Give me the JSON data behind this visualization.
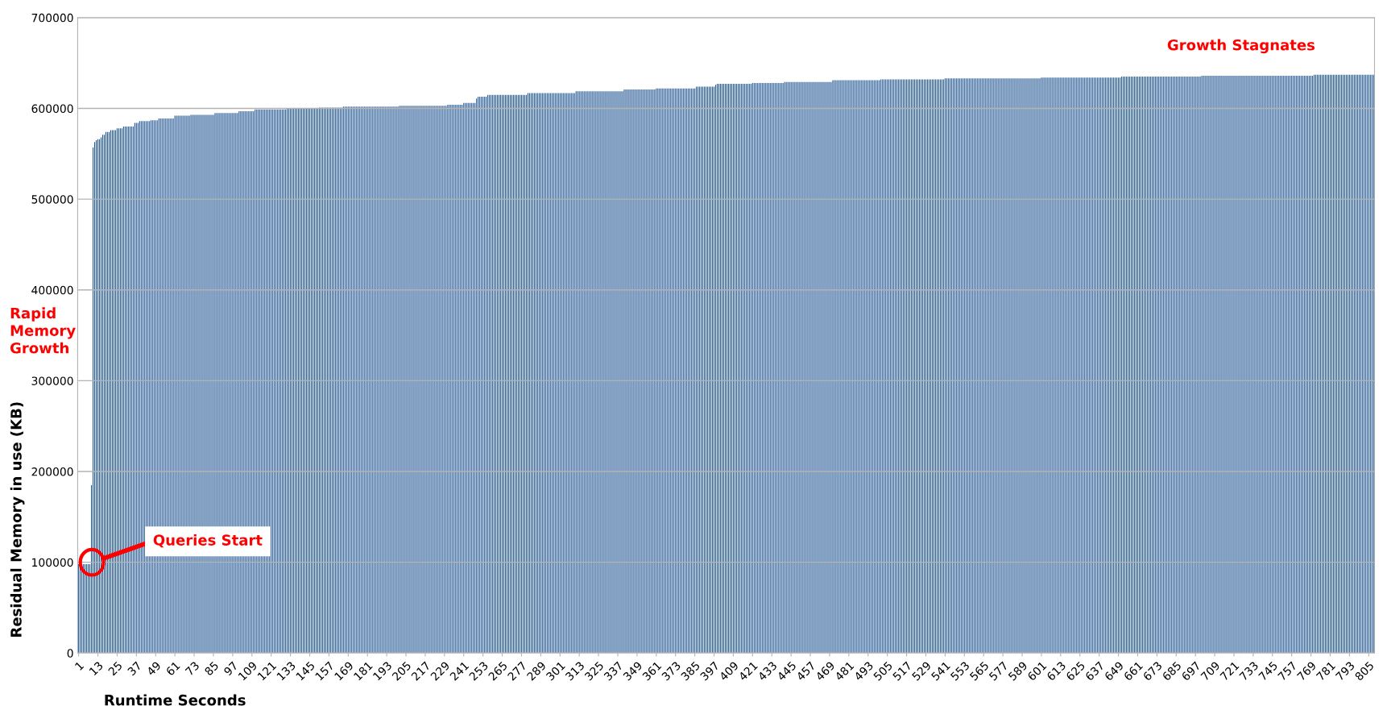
{
  "chart_data": {
    "type": "bar",
    "xlabel": "Runtime Seconds",
    "ylabel": "Residual Memory in use (KB)",
    "annotations": [
      {
        "text": "Queries Start",
        "y": 100000
      },
      "Rapid\nMemory\nGrowth",
      "Growth Stagnates"
    ],
    "ylim": [
      0,
      700000
    ],
    "yticks": [
      0,
      100000,
      200000,
      300000,
      400000,
      500000,
      600000,
      700000
    ],
    "grid": "y",
    "categories": [
      "1",
      null,
      null,
      null,
      null,
      null,
      null,
      null,
      null,
      null,
      null,
      null,
      "13",
      null,
      null,
      null,
      null,
      null,
      null,
      null,
      null,
      null,
      null,
      null,
      "25",
      null,
      null,
      null,
      null,
      null,
      null,
      null,
      null,
      null,
      null,
      null,
      "37",
      null,
      null,
      null,
      null,
      null,
      null,
      null,
      null,
      null,
      null,
      null,
      "49",
      null,
      null,
      null,
      null,
      null,
      null,
      null,
      null,
      null,
      null,
      null,
      "61",
      null,
      null,
      null,
      null,
      null,
      null,
      null,
      null,
      null,
      null,
      null,
      "73",
      null,
      null,
      null,
      null,
      null,
      null,
      null,
      null,
      null,
      null,
      null,
      "85",
      null,
      null,
      null,
      null,
      null,
      null,
      null,
      null,
      null,
      null,
      null,
      "97",
      null,
      null,
      null,
      null,
      null,
      null,
      null,
      null,
      null,
      null,
      null,
      "109",
      null,
      null,
      null,
      null,
      null,
      null,
      null,
      null,
      null,
      null,
      null,
      "121",
      null,
      null,
      null,
      null,
      null,
      null,
      null,
      null,
      null,
      null,
      null,
      "133",
      null,
      null,
      null,
      null,
      null,
      null,
      null,
      null,
      null,
      null,
      null,
      "145",
      null,
      null,
      null,
      null,
      null,
      null,
      null,
      null,
      null,
      null,
      null,
      "157",
      null,
      null,
      null,
      null,
      null,
      null,
      null,
      null,
      null,
      null,
      null,
      "169",
      null,
      null,
      null,
      null,
      null,
      null,
      null,
      null,
      null,
      null,
      null,
      "181",
      null,
      null,
      null,
      null,
      null,
      null,
      null,
      null,
      null,
      null,
      null,
      "193",
      null,
      null,
      null,
      null,
      null,
      null,
      null,
      null,
      null,
      null,
      null,
      "205",
      null,
      null,
      null,
      null,
      null,
      null,
      null,
      null,
      null,
      null,
      null,
      "217",
      null,
      null,
      null,
      null,
      null,
      null,
      null,
      null,
      null,
      null,
      null,
      "229",
      null,
      null,
      null,
      null,
      null,
      null,
      null,
      null,
      null,
      null,
      null,
      "241",
      null,
      null,
      null,
      null,
      null,
      null,
      null,
      null,
      null,
      null,
      null,
      "253",
      null,
      null,
      null,
      null,
      null,
      null,
      null,
      null,
      null,
      null,
      null,
      "265",
      null,
      null,
      null,
      null,
      null,
      null,
      null,
      null,
      null,
      null,
      null,
      "277",
      null,
      null,
      null,
      null,
      null,
      null,
      null,
      null,
      null,
      null,
      null,
      "289",
      null,
      null,
      null,
      null,
      null,
      null,
      null,
      null,
      null,
      null,
      null,
      "301",
      null,
      null,
      null,
      null,
      null,
      null,
      null,
      null,
      null,
      null,
      null,
      "313",
      null,
      null,
      null,
      null,
      null,
      null,
      null,
      null,
      null,
      null,
      null,
      "325",
      null,
      null,
      null,
      null,
      null,
      null,
      null,
      null,
      null,
      null,
      null,
      "337",
      null,
      null,
      null,
      null,
      null,
      null,
      null,
      null,
      null,
      null,
      null,
      "349",
      null,
      null,
      null,
      null,
      null,
      null,
      null,
      null,
      null,
      null,
      null,
      "361",
      null,
      null,
      null,
      null,
      null,
      null,
      null,
      null,
      null,
      null,
      null,
      "373",
      null,
      null,
      null,
      null,
      null,
      null,
      null,
      null,
      null,
      null,
      null,
      "385",
      null,
      null,
      null,
      null,
      null,
      null,
      null,
      null,
      null,
      null,
      null,
      "397",
      null,
      null,
      null,
      null,
      null,
      null,
      null,
      null,
      null,
      null,
      null,
      "409",
      null,
      null,
      null,
      null,
      null,
      null,
      null,
      null,
      null,
      null,
      null,
      "421",
      null,
      null,
      null,
      null,
      null,
      null,
      null,
      null,
      null,
      null,
      null,
      "433",
      null,
      null,
      null,
      null,
      null,
      null,
      null,
      null,
      null,
      null,
      null,
      "445",
      null,
      null,
      null,
      null,
      null,
      null,
      null,
      null,
      null,
      null,
      null,
      "457",
      null,
      null,
      null,
      null,
      null,
      null,
      null,
      null,
      null,
      null,
      null,
      "469",
      null,
      null,
      null,
      null,
      null,
      null,
      null,
      null,
      null,
      null,
      null,
      "481",
      null,
      null,
      null,
      null,
      null,
      null,
      null,
      null,
      null,
      null,
      null,
      "493",
      null,
      null,
      null,
      null,
      null,
      null,
      null,
      null,
      null,
      null,
      null,
      "505",
      null,
      null,
      null,
      null,
      null,
      null,
      null,
      null,
      null,
      null,
      null,
      "517",
      null,
      null,
      null,
      null,
      null,
      null,
      null,
      null,
      null,
      null,
      null,
      "529",
      null,
      null,
      null,
      null,
      null,
      null,
      null,
      null,
      null,
      null,
      null,
      "541",
      null,
      null,
      null,
      null,
      null,
      null,
      null,
      null,
      null,
      null,
      null,
      "553",
      null,
      null,
      null,
      null,
      null,
      null,
      null,
      null,
      null,
      null,
      null,
      "565",
      null,
      null,
      null,
      null,
      null,
      null,
      null,
      null,
      null,
      null,
      null,
      "577",
      null,
      null,
      null,
      null,
      null,
      null,
      null,
      null,
      null,
      null,
      null,
      "589",
      null,
      null,
      null,
      null,
      null,
      null,
      null,
      null,
      null,
      null,
      null,
      "601",
      null,
      null,
      null,
      null,
      null,
      null,
      null,
      null,
      null,
      null,
      null,
      "613",
      null,
      null,
      null,
      null,
      null,
      null,
      null,
      null,
      null,
      null,
      null,
      "625",
      null,
      null,
      null,
      null,
      null,
      null,
      null,
      null,
      null,
      null,
      null,
      "637",
      null,
      null,
      null,
      null,
      null,
      null,
      null,
      null,
      null,
      null,
      null,
      "649",
      null,
      null,
      null,
      null,
      null,
      null,
      null,
      null,
      null,
      null,
      null,
      "661",
      null,
      null,
      null,
      null,
      null,
      null,
      null,
      null,
      null,
      null,
      null,
      "673",
      null,
      null,
      null,
      null,
      null,
      null,
      null,
      null,
      null,
      null,
      null,
      "685",
      null,
      null,
      null,
      null,
      null,
      null,
      null,
      null,
      null,
      null,
      null,
      "697",
      null,
      null,
      null,
      null,
      null,
      null,
      null,
      null,
      null,
      null,
      null,
      "709",
      null,
      null,
      null,
      null,
      null,
      null,
      null,
      null,
      null,
      null,
      null,
      "721",
      null,
      null,
      null,
      null,
      null,
      null,
      null,
      null,
      null,
      null,
      null,
      "733",
      null,
      null,
      null,
      null,
      null,
      null,
      null,
      null,
      null,
      null,
      null,
      "745",
      null,
      null,
      null,
      null,
      null,
      null,
      null,
      null,
      null,
      null,
      null,
      "757",
      null,
      null,
      null,
      null,
      null,
      null,
      null,
      null,
      null,
      null,
      null,
      "769",
      null,
      null,
      null,
      null,
      null,
      null,
      null,
      null,
      null,
      null,
      null,
      "781",
      null,
      null,
      null,
      null,
      null,
      null,
      null,
      null,
      null,
      null,
      null,
      "793",
      null,
      null,
      null,
      null,
      null,
      null,
      null,
      null,
      null,
      null,
      null,
      "805",
      null,
      null,
      null
    ],
    "series": [
      {
        "color": "#1f5592",
        "values": [
          98000,
          98000,
          98000,
          98000,
          98000,
          98000,
          98000,
          98000,
          185000,
          557000,
          563000,
          565000,
          566000,
          566000,
          568000,
          571000,
          571000,
          574000,
          574000,
          574000,
          576000,
          576000,
          576000,
          576000,
          578000,
          578000,
          578000,
          578000,
          580000,
          580000,
          580000,
          580000,
          580000,
          580000,
          580000,
          584000,
          584000,
          584000,
          586000,
          586000,
          586000,
          586000,
          586000,
          586000,
          586000,
          587000,
          587000,
          587000,
          587000,
          587000,
          589000,
          589000,
          589000,
          589000,
          589000,
          589000,
          589000,
          589000,
          589000,
          589000,
          592000,
          592000,
          592000,
          592000,
          592000,
          592000,
          592000,
          592000,
          592000,
          592000,
          593000,
          593000,
          593000,
          593000,
          593000,
          593000,
          593000,
          593000,
          593000,
          593000,
          593000,
          593000,
          593000,
          593000,
          593000,
          595000,
          595000,
          595000,
          595000,
          595000,
          595000,
          595000,
          595000,
          595000,
          595000,
          595000,
          595000,
          595000,
          595000,
          595000,
          597000,
          597000,
          597000,
          597000,
          597000,
          597000,
          597000,
          597000,
          597000,
          597000,
          599000,
          599000,
          599000,
          599000,
          599000,
          599000,
          599000,
          599000,
          599000,
          599000,
          599000,
          599000,
          599000,
          599000,
          599000,
          599000,
          599000,
          599000,
          599000,
          599000,
          600000,
          600000,
          600000,
          600000,
          600000,
          600000,
          600000,
          600000,
          600000,
          600000,
          600000,
          600000,
          600000,
          600000,
          600000,
          600000,
          600000,
          600000,
          600000,
          600000,
          601000,
          601000,
          601000,
          601000,
          601000,
          601000,
          601000,
          601000,
          601000,
          601000,
          601000,
          601000,
          601000,
          601000,
          601000,
          602000,
          602000,
          602000,
          602000,
          602000,
          602000,
          602000,
          602000,
          602000,
          602000,
          602000,
          602000,
          602000,
          602000,
          602000,
          602000,
          602000,
          602000,
          602000,
          602000,
          602000,
          602000,
          602000,
          602000,
          602000,
          602000,
          602000,
          602000,
          602000,
          602000,
          602000,
          602000,
          602000,
          602000,
          602000,
          603000,
          603000,
          603000,
          603000,
          603000,
          603000,
          603000,
          603000,
          603000,
          603000,
          603000,
          603000,
          603000,
          603000,
          603000,
          603000,
          603000,
          603000,
          603000,
          603000,
          603000,
          603000,
          603000,
          603000,
          603000,
          603000,
          603000,
          603000,
          603000,
          603000,
          604000,
          604000,
          604000,
          604000,
          604000,
          604000,
          604000,
          604000,
          604000,
          604000,
          606000,
          606000,
          606000,
          606000,
          606000,
          606000,
          606000,
          606000,
          611000,
          613000,
          613000,
          613000,
          613000,
          613000,
          613000,
          615000,
          615000,
          615000,
          615000,
          615000,
          615000,
          615000,
          615000,
          615000,
          615000,
          615000,
          615000,
          615000,
          615000,
          615000,
          615000,
          615000,
          615000,
          615000,
          615000,
          615000,
          615000,
          615000,
          615000,
          615000,
          617000,
          617000,
          617000,
          617000,
          617000,
          617000,
          617000,
          617000,
          617000,
          617000,
          617000,
          617000,
          617000,
          617000,
          617000,
          617000,
          617000,
          617000,
          617000,
          617000,
          617000,
          617000,
          617000,
          617000,
          617000,
          617000,
          617000,
          617000,
          617000,
          617000,
          619000,
          619000,
          619000,
          619000,
          619000,
          619000,
          619000,
          619000,
          619000,
          619000,
          619000,
          619000,
          619000,
          619000,
          619000,
          619000,
          619000,
          619000,
          619000,
          619000,
          619000,
          619000,
          619000,
          619000,
          619000,
          619000,
          619000,
          619000,
          619000,
          619000,
          621000,
          621000,
          621000,
          621000,
          621000,
          621000,
          621000,
          621000,
          621000,
          621000,
          621000,
          621000,
          621000,
          621000,
          621000,
          621000,
          621000,
          621000,
          621000,
          621000,
          622000,
          622000,
          622000,
          622000,
          622000,
          622000,
          622000,
          622000,
          622000,
          622000,
          622000,
          622000,
          622000,
          622000,
          622000,
          622000,
          622000,
          622000,
          622000,
          622000,
          622000,
          622000,
          622000,
          622000,
          622000,
          624000,
          624000,
          624000,
          624000,
          624000,
          624000,
          624000,
          624000,
          624000,
          624000,
          624000,
          624000,
          626000,
          627000,
          627000,
          627000,
          627000,
          627000,
          627000,
          627000,
          627000,
          627000,
          627000,
          627000,
          627000,
          627000,
          627000,
          627000,
          627000,
          627000,
          627000,
          627000,
          627000,
          627000,
          627000,
          628000,
          628000,
          628000,
          628000,
          628000,
          628000,
          628000,
          628000,
          628000,
          628000,
          628000,
          628000,
          628000,
          628000,
          628000,
          628000,
          628000,
          628000,
          628000,
          628000,
          629000,
          629000,
          629000,
          629000,
          629000,
          629000,
          629000,
          629000,
          629000,
          629000,
          629000,
          629000,
          629000,
          629000,
          629000,
          629000,
          629000,
          629000,
          629000,
          629000,
          629000,
          629000,
          629000,
          629000,
          629000,
          629000,
          629000,
          629000,
          629000,
          629000,
          631000,
          631000,
          631000,
          631000,
          631000,
          631000,
          631000,
          631000,
          631000,
          631000,
          631000,
          631000,
          631000,
          631000,
          631000,
          631000,
          631000,
          631000,
          631000,
          631000,
          631000,
          631000,
          631000,
          631000,
          631000,
          631000,
          631000,
          631000,
          631000,
          631000,
          632000,
          632000,
          632000,
          632000,
          632000,
          632000,
          632000,
          632000,
          632000,
          632000,
          632000,
          632000,
          632000,
          632000,
          632000,
          632000,
          632000,
          632000,
          632000,
          632000,
          632000,
          632000,
          632000,
          632000,
          632000,
          632000,
          632000,
          632000,
          632000,
          632000,
          632000,
          632000,
          632000,
          632000,
          632000,
          632000,
          632000,
          632000,
          632000,
          632000,
          633000,
          633000,
          633000,
          633000,
          633000,
          633000,
          633000,
          633000,
          633000,
          633000,
          633000,
          633000,
          633000,
          633000,
          633000,
          633000,
          633000,
          633000,
          633000,
          633000,
          633000,
          633000,
          633000,
          633000,
          633000,
          633000,
          633000,
          633000,
          633000,
          633000,
          633000,
          633000,
          633000,
          633000,
          633000,
          633000,
          633000,
          633000,
          633000,
          633000,
          633000,
          633000,
          633000,
          633000,
          633000,
          633000,
          633000,
          633000,
          633000,
          633000,
          633000,
          633000,
          633000,
          633000,
          633000,
          633000,
          633000,
          633000,
          633000,
          633000,
          634000,
          634000,
          634000,
          634000,
          634000,
          634000,
          634000,
          634000,
          634000,
          634000,
          634000,
          634000,
          634000,
          634000,
          634000,
          634000,
          634000,
          634000,
          634000,
          634000,
          634000,
          634000,
          634000,
          634000,
          634000,
          634000,
          634000,
          634000,
          634000,
          634000,
          634000,
          634000,
          634000,
          634000,
          634000,
          634000,
          634000,
          634000,
          634000,
          634000,
          634000,
          634000,
          634000,
          634000,
          634000,
          634000,
          634000,
          634000,
          634000,
          634000,
          635000,
          635000,
          635000,
          635000,
          635000,
          635000,
          635000,
          635000,
          635000,
          635000,
          635000,
          635000,
          635000,
          635000,
          635000,
          635000,
          635000,
          635000,
          635000,
          635000,
          635000,
          635000,
          635000,
          635000,
          635000,
          635000,
          635000,
          635000,
          635000,
          635000,
          635000,
          635000,
          635000,
          635000,
          635000,
          635000,
          635000,
          635000,
          635000,
          635000,
          635000,
          635000,
          635000,
          635000,
          635000,
          635000,
          635000,
          635000,
          635000,
          635000,
          636000,
          636000,
          636000,
          636000,
          636000,
          636000,
          636000,
          636000,
          636000,
          636000,
          636000,
          636000,
          636000,
          636000,
          636000,
          636000,
          636000,
          636000,
          636000,
          636000,
          636000,
          636000,
          636000,
          636000,
          636000,
          636000,
          636000,
          636000,
          636000,
          636000,
          636000,
          636000,
          636000,
          636000,
          636000,
          636000,
          636000,
          636000,
          636000,
          636000,
          636000,
          636000,
          636000,
          636000,
          636000,
          636000,
          636000,
          636000,
          636000,
          636000,
          636000,
          636000,
          636000,
          636000,
          636000,
          636000,
          636000,
          636000,
          636000,
          636000,
          636000,
          636000,
          636000,
          636000,
          636000,
          636000,
          636000,
          636000,
          636000,
          636000,
          637000,
          637000,
          637000,
          637000,
          637000,
          637000,
          637000,
          637000,
          637000,
          637000,
          637000,
          637000,
          637000,
          637000,
          637000,
          637000,
          637000,
          637000,
          637000,
          637000,
          637000,
          637000,
          637000,
          637000,
          637000,
          637000,
          637000,
          637000,
          637000,
          637000,
          637000,
          637000,
          637000,
          637000,
          637000,
          637000,
          637000,
          637000
        ]
      }
    ]
  }
}
